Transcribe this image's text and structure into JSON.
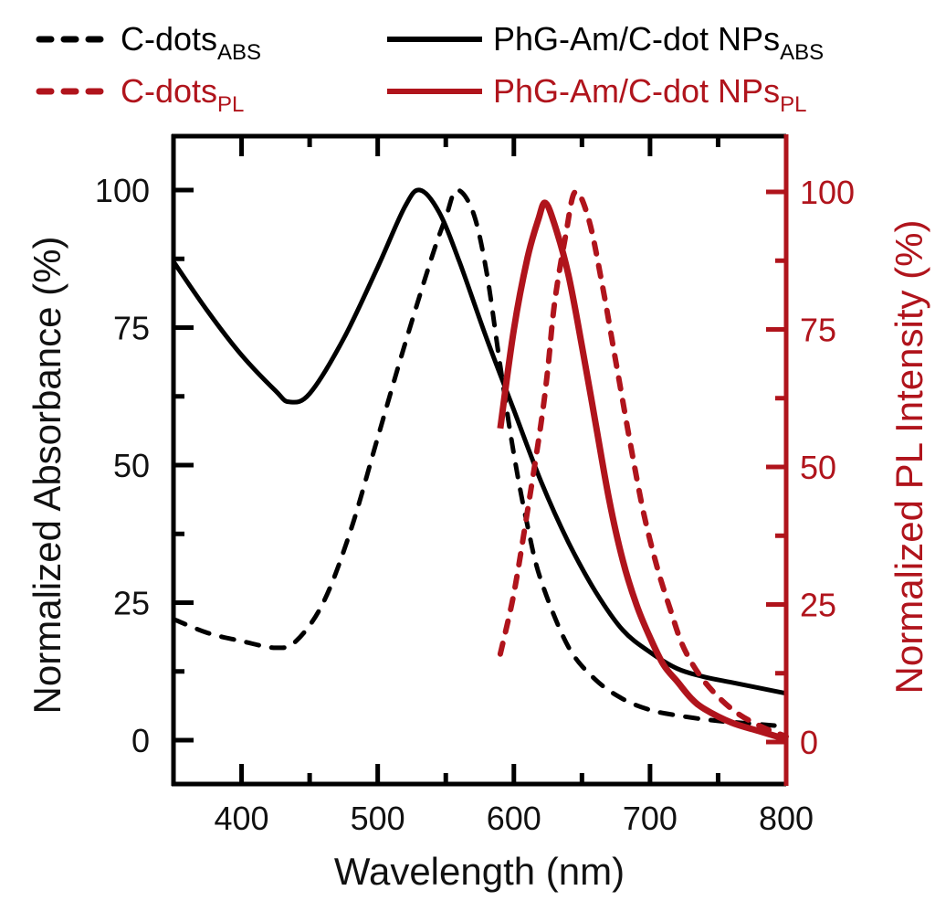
{
  "chart_data": {
    "type": "line",
    "title": "",
    "xlabel": "Wavelength (nm)",
    "ylabel_left": "Normalized Absorbance (%)",
    "ylabel_right": "Normalized PL Intensity (%)",
    "xlim": [
      350,
      800
    ],
    "ylim_left": [
      -8,
      108
    ],
    "ylim_right": [
      -4,
      112
    ],
    "x_ticks": [
      400,
      500,
      600,
      700,
      800
    ],
    "x_tick_labels": [
      "400",
      "500",
      "600",
      "700",
      "800"
    ],
    "y_left_ticks": [
      0,
      25,
      50,
      75,
      100
    ],
    "y_left_tick_labels": [
      "0",
      "25",
      "50",
      "75",
      "100"
    ],
    "y_right_ticks": [
      0,
      25,
      50,
      75,
      100
    ],
    "y_right_tick_labels": [
      "0",
      "25",
      "50",
      "75",
      "100"
    ],
    "grid": false,
    "legend_position": "top",
    "colors": {
      "abs": "#000000",
      "pl": "#b0141c"
    },
    "series": [
      {
        "name": "C-dots",
        "subscript": "ABS",
        "axis": "left",
        "color": "#000000",
        "style": "dashed",
        "x": [
          350,
          375,
          400,
          425,
          440,
          460,
          480,
          500,
          520,
          540,
          550,
          558,
          570,
          580,
          590,
          600,
          610,
          620,
          640,
          660,
          680,
          700,
          720,
          750,
          800
        ],
        "y": [
          22,
          19.5,
          18,
          16.8,
          18,
          25,
          38,
          55,
          72,
          88,
          95,
          100,
          96,
          85,
          68,
          52,
          39,
          29,
          17,
          11,
          7.5,
          5.5,
          4.5,
          3.5,
          2.5
        ]
      },
      {
        "name": "PhG-Am/C-dot NPs",
        "subscript": "ABS",
        "axis": "left",
        "color": "#000000",
        "style": "solid",
        "x": [
          350,
          375,
          400,
          425,
          435,
          450,
          475,
          500,
          520,
          531,
          545,
          560,
          580,
          600,
          620,
          640,
          660,
          680,
          700,
          720,
          740,
          760,
          780,
          800
        ],
        "y": [
          87,
          78,
          70,
          63.5,
          61.5,
          63,
          73,
          86,
          97,
          100,
          96,
          87,
          73,
          60,
          47,
          36,
          27,
          20,
          16,
          13,
          11.5,
          10.5,
          9.5,
          8.5
        ]
      },
      {
        "name": "C-dots",
        "subscript": "PL",
        "axis": "right",
        "color": "#b0141c",
        "style": "dashed",
        "x": [
          590,
          600,
          610,
          620,
          625,
          630,
          638,
          645,
          655,
          665,
          675,
          685,
          695,
          705,
          715,
          725,
          740,
          760,
          780,
          800
        ],
        "y": [
          16,
          27,
          42,
          58,
          68,
          80,
          92,
          100,
          95,
          83,
          69,
          55,
          42,
          32,
          24,
          17,
          11,
          6,
          3,
          1
        ]
      },
      {
        "name": "PhG-Am/C-dot NPs",
        "subscript": "PL",
        "axis": "right",
        "color": "#b0141c",
        "style": "solid",
        "x": [
          590,
          600,
          610,
          618,
          623,
          630,
          640,
          650,
          660,
          670,
          680,
          690,
          700,
          710,
          720,
          730,
          740,
          760,
          780,
          800
        ],
        "y": [
          57,
          75,
          88,
          95,
          98,
          94,
          85,
          72,
          58,
          44,
          33,
          25,
          19,
          14,
          11,
          8,
          6,
          3.5,
          2,
          0.5
        ]
      }
    ]
  }
}
